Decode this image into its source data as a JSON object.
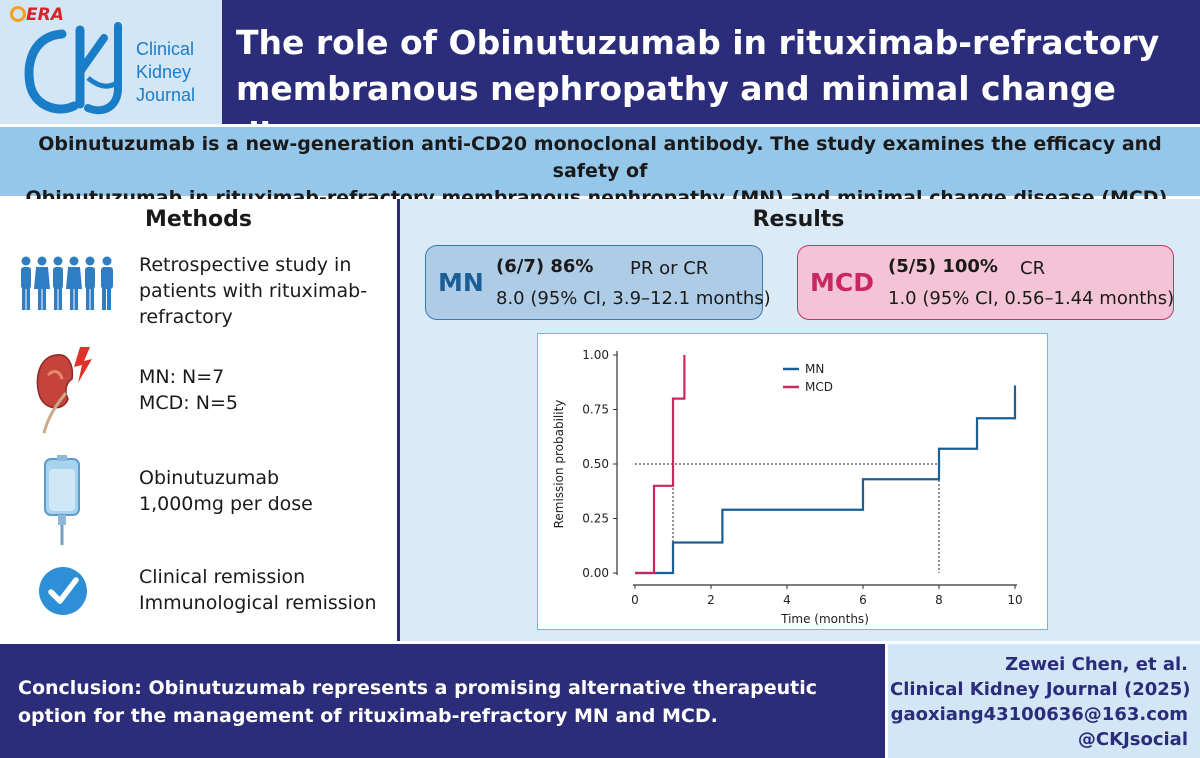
{
  "header": {
    "era_label": "ERA",
    "logo_text": [
      "Clinical",
      "Kidney",
      "Journal"
    ],
    "title_line1": "The role of Obinutuzumab in rituximab-refractory",
    "title_line2": "membranous nephropathy and minimal change disease"
  },
  "intro": {
    "line1": "Obinutuzumab is a new-generation anti-CD20 monoclonal antibody. The study examines the efficacy and safety of",
    "line2": "Obinutuzumab in rituximab-refractory membranous nephropathy (MN) and minimal change disease (MCD)."
  },
  "methods": {
    "title": "Methods",
    "items": [
      {
        "icon": "people-icon",
        "lines": [
          "Retrospective study in",
          "patients with rituximab-",
          "refractory"
        ]
      },
      {
        "icon": "kidney-icon",
        "lines": [
          "MN: N=7",
          "MCD: N=5"
        ]
      },
      {
        "icon": "iv-bag-icon",
        "lines": [
          "Obinutuzumab",
          "1,000mg per dose"
        ]
      },
      {
        "icon": "checkmark-icon",
        "lines": [
          "Clinical remission",
          "Immunological remission"
        ]
      }
    ]
  },
  "results": {
    "title": "Results",
    "mn": {
      "label": "MN",
      "stat": "(6/7) 86%",
      "outcome": "PR or CR",
      "time": "8.0 (95% CI, 3.9–12.1 months)"
    },
    "mcd": {
      "label": "MCD",
      "stat": "(5/5) 100%",
      "outcome": "CR",
      "time": "1.0 (95% CI, 0.56–1.44 months)"
    }
  },
  "colors": {
    "mn": "#1b5e96",
    "mcd": "#c8285f",
    "navy": "#2b2c7a"
  },
  "chart_data": {
    "type": "line",
    "xlabel": "Time (months)",
    "ylabel": "Remission probability",
    "xticks": [
      "0",
      "2",
      "4",
      "6",
      "8",
      "10"
    ],
    "yticks": [
      "0.00",
      "0.25",
      "0.50",
      "0.75",
      "1.00"
    ],
    "xlim": [
      0,
      10
    ],
    "ylim": [
      0,
      1
    ],
    "legend_position": "top-right",
    "step": true,
    "series": [
      {
        "name": "MN",
        "color": "#1b5e96",
        "x": [
          0,
          1.0,
          1.0,
          2.3,
          2.3,
          6.0,
          6.0,
          8.0,
          8.0,
          9.0,
          9.0,
          10.0,
          10.0
        ],
        "y": [
          0,
          0,
          0.14,
          0.14,
          0.29,
          0.29,
          0.43,
          0.43,
          0.57,
          0.57,
          0.71,
          0.71,
          0.86
        ]
      },
      {
        "name": "MCD",
        "color": "#c8285f",
        "x": [
          0,
          0.5,
          0.5,
          1.0,
          1.0,
          1.3,
          1.3
        ],
        "y": [
          0,
          0,
          0.4,
          0.4,
          0.8,
          0.8,
          1.0
        ]
      }
    ],
    "reference_lines": [
      {
        "type": "horizontal",
        "y": 0.5,
        "x_to": 8.0
      },
      {
        "type": "vertical",
        "x": 1.0,
        "y_to": 0.5
      },
      {
        "type": "vertical",
        "x": 8.0,
        "y_to": 0.5
      }
    ]
  },
  "footer": {
    "conclusion_line1": "Conclusion: Obinutuzumab represents a promising alternative therapeutic",
    "conclusion_line2": "option for the management of rituximab-refractory MN and MCD.",
    "citation": [
      "Zewei Chen, et al.",
      "Clinical Kidney Journal (2025)",
      "gaoxiang43100636@163.com",
      "@CKJsocial"
    ]
  }
}
